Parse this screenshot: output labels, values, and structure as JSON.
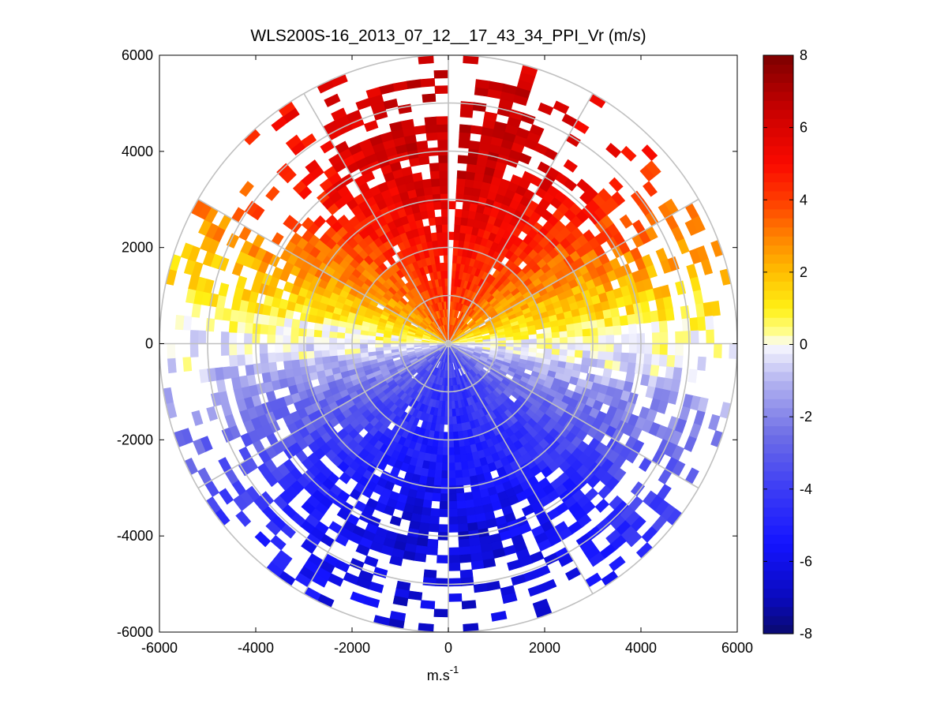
{
  "chart_data": {
    "type": "heatmap",
    "subtype": "polar-ppi",
    "title": "WLS200S-16_2013_07_12__17_43_34_PPI_Vr (m/s)",
    "xlabel_base": "m.s",
    "xlabel_sup": "-1",
    "ylabel": "",
    "xlim": [
      -6000,
      6000
    ],
    "ylim": [
      -6000,
      6000
    ],
    "x_ticks": [
      -6000,
      -4000,
      -2000,
      0,
      2000,
      4000,
      6000
    ],
    "y_ticks": [
      -6000,
      -4000,
      -2000,
      0,
      2000,
      4000,
      6000
    ],
    "x_tick_labels": [
      "-6000",
      "-4000",
      "-2000",
      "0",
      "2000",
      "4000",
      "6000"
    ],
    "y_tick_labels": [
      "-6000",
      "-4000",
      "-2000",
      "0",
      "2000",
      "4000",
      "6000"
    ],
    "range_rings_m": [
      1000,
      2000,
      3000,
      4000,
      5000,
      6000
    ],
    "spoke_angles_deg": [
      0,
      30,
      60,
      90,
      120,
      150,
      180,
      210,
      240,
      270,
      300,
      330
    ],
    "max_range_m": 6000,
    "colorbar": {
      "min": -8,
      "max": 8,
      "ticks": [
        8,
        6,
        4,
        2,
        0,
        -2,
        -4,
        -6,
        -8
      ],
      "tick_labels": [
        "8",
        "6",
        "4",
        "2",
        "0",
        "-2",
        "-4",
        "-6",
        "-8"
      ],
      "colormap": "blue-white-yellow-red"
    },
    "field_model": {
      "description": "Radial velocity pattern: positive (receding) in the northern half, negative (approaching) in the southern half",
      "north_peak_vr": 6.5,
      "south_peak_vr": -6.5,
      "bin_range_m": 160,
      "bin_azimuth_deg": 3
    }
  }
}
